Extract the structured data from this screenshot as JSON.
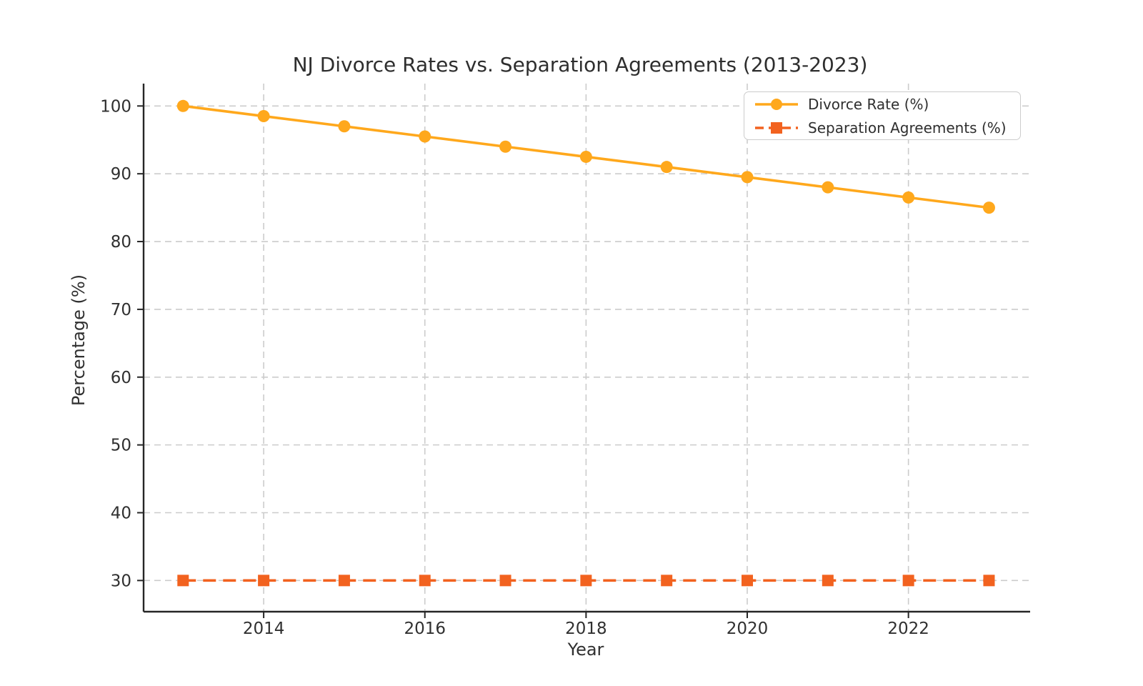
{
  "figure": {
    "background": "#ffffff"
  },
  "chart_data": {
    "type": "line",
    "title": "NJ Divorce Rates vs. Separation Agreements (2013-2023)",
    "xlabel": "Year",
    "ylabel": "Percentage (%)",
    "x": [
      2013,
      2014,
      2015,
      2016,
      2017,
      2018,
      2019,
      2020,
      2021,
      2022,
      2023
    ],
    "series": [
      {
        "name": "Divorce Rate (%)",
        "values": [
          100,
          98.5,
          97,
          95.5,
          94,
          92.5,
          91,
          89.5,
          88,
          86.5,
          85
        ],
        "color": "#FFA81C",
        "line_style": "solid",
        "marker": "circle"
      },
      {
        "name": "Separation Agreements (%)",
        "values": [
          30,
          30,
          30,
          30,
          30,
          30,
          30,
          30,
          30,
          30,
          30
        ],
        "color": "#F2621F",
        "line_style": "dashed",
        "marker": "square"
      }
    ],
    "xticks": [
      2014,
      2016,
      2018,
      2020,
      2022
    ],
    "yticks": [
      30,
      40,
      50,
      60,
      70,
      80,
      90,
      100
    ],
    "xlim": [
      2012.51,
      2023.51
    ],
    "ylim": [
      25.4,
      103.3
    ],
    "grid": true,
    "legend_position": "upper right",
    "grid_color": "#cccccc",
    "spine_color": "#262626",
    "text_color": "#303030"
  }
}
